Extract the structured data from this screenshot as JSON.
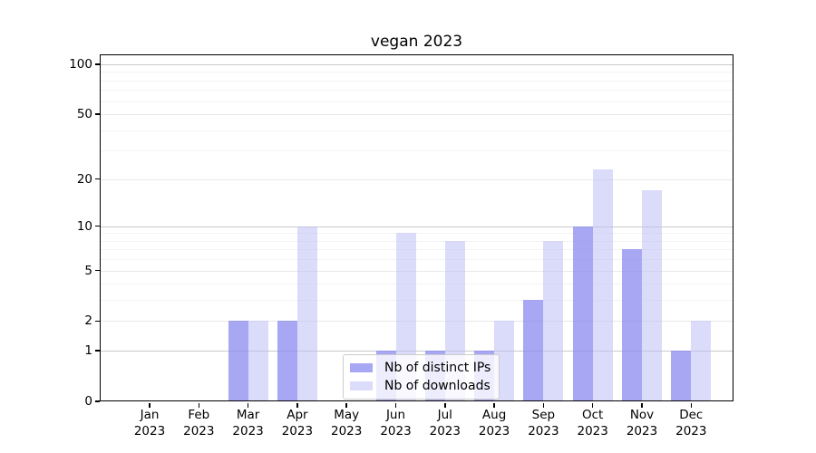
{
  "chart_data": {
    "type": "bar",
    "title": "vegan 2023",
    "categories": [
      "Jan 2023",
      "Feb 2023",
      "Mar 2023",
      "Apr 2023",
      "May 2023",
      "Jun 2023",
      "Jul 2023",
      "Aug 2023",
      "Sep 2023",
      "Oct 2023",
      "Nov 2023",
      "Dec 2023"
    ],
    "series": [
      {
        "name": "Nb of distinct IPs",
        "color": "#a6a6f3",
        "fill": "rgba(137,137,240,0.75)",
        "values": [
          0,
          0,
          2,
          2,
          0,
          1,
          1,
          1,
          3,
          10,
          7,
          1
        ]
      },
      {
        "name": "Nb of downloads",
        "color": "#dbdbf9",
        "fill": "rgba(190,190,245,0.55)",
        "values": [
          0,
          0,
          2,
          10,
          0,
          9,
          8,
          2,
          8,
          23,
          17,
          2
        ]
      }
    ],
    "xlabel": "",
    "ylabel": "",
    "yscale": "log1p",
    "ylim": [
      0,
      115
    ],
    "yticks": [
      0,
      1,
      2,
      5,
      10,
      20,
      50,
      100
    ],
    "yticks_minor": [
      3,
      4,
      6,
      7,
      8,
      9,
      30,
      40,
      60,
      70,
      80,
      90
    ],
    "grid": "horizontal",
    "legend_position": "lower center"
  },
  "colors": {
    "grid_power10": "#c9c9c9",
    "grid_labeled": "#e8e8e8",
    "grid_minor": "#f3f3f3",
    "spine": "#000000",
    "legend_border": "#cccccc"
  }
}
